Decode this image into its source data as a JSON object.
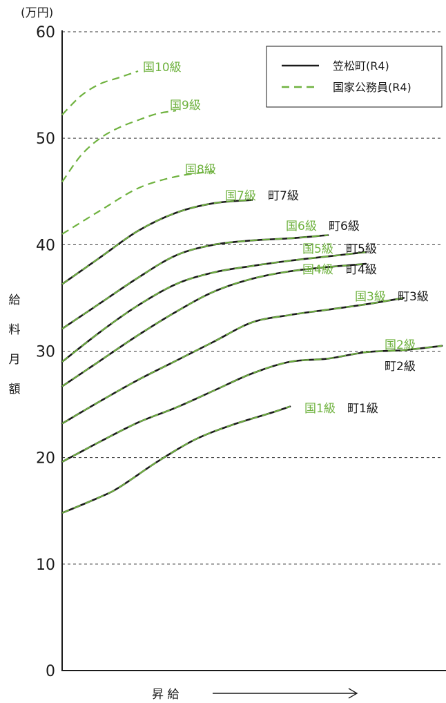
{
  "chart_data": {
    "type": "line",
    "unit_label": "(万円)",
    "ylabel": "給料月額",
    "xlabel": "昇 給",
    "ylim": [
      0,
      60
    ],
    "yticks": [
      0,
      10,
      20,
      30,
      40,
      50,
      60
    ],
    "xlim": [
      0,
      100
    ],
    "grid": "horizontal dashed at 10-unit ticks",
    "legend": {
      "placement": "top-right",
      "entries": [
        {
          "label": "笠松町(R4)",
          "style": "solid",
          "color": "#1a1a1a"
        },
        {
          "label": "国家公務員(R4)",
          "style": "dashed",
          "color": "#6fb23f"
        }
      ]
    },
    "series": [
      {
        "grade": 1,
        "gov_label": "国1級",
        "town_label": "町1級",
        "x": [
          0,
          10,
          15,
          25,
          35,
          45,
          55,
          60
        ],
        "y": [
          14.8,
          16.3,
          17.2,
          19.6,
          21.7,
          23.1,
          24.2,
          24.8
        ]
      },
      {
        "grade": 2,
        "gov_label": "国2級",
        "town_label": "町2級",
        "x": [
          0,
          10,
          20,
          30,
          40,
          50,
          60,
          70,
          80,
          90,
          100
        ],
        "y": [
          19.6,
          21.5,
          23.3,
          24.7,
          26.3,
          27.9,
          29.0,
          29.3,
          29.9,
          30.1,
          30.5
        ]
      },
      {
        "grade": 3,
        "gov_label": "国3級",
        "town_label": "町3級",
        "x": [
          0,
          10,
          20,
          30,
          40,
          50,
          60,
          70,
          80,
          90
        ],
        "y": [
          23.2,
          25.3,
          27.3,
          29.1,
          30.9,
          32.7,
          33.4,
          33.9,
          34.4,
          35.0
        ]
      },
      {
        "grade": 4,
        "gov_label": "国4級",
        "town_label": "町4級",
        "x": [
          0,
          10,
          20,
          30,
          40,
          50,
          60,
          70,
          80
        ],
        "y": [
          26.7,
          29.1,
          31.5,
          33.7,
          35.6,
          36.8,
          37.5,
          37.9,
          38.2
        ]
      },
      {
        "grade": 5,
        "gov_label": "国5級",
        "town_label": "町5級",
        "x": [
          0,
          10,
          20,
          30,
          40,
          50,
          60,
          70,
          80
        ],
        "y": [
          29.0,
          31.8,
          34.3,
          36.3,
          37.4,
          38.0,
          38.5,
          38.9,
          39.3
        ]
      },
      {
        "grade": 6,
        "gov_label": "国6級",
        "town_label": "町6級",
        "x": [
          0,
          10,
          20,
          30,
          40,
          50,
          60,
          70
        ],
        "y": [
          32.1,
          34.5,
          36.9,
          39.0,
          40.0,
          40.4,
          40.6,
          40.9
        ]
      },
      {
        "grade": 7,
        "gov_label": "国7級",
        "town_label": "町7級",
        "x": [
          0,
          10,
          20,
          30,
          40,
          50
        ],
        "y": [
          36.3,
          38.8,
          41.3,
          43.0,
          43.9,
          44.2
        ]
      },
      {
        "grade": 8,
        "gov_label": "国8級",
        "town_label": "",
        "x": [
          0,
          10,
          20,
          30,
          40
        ],
        "y": [
          41.0,
          43.2,
          45.3,
          46.4,
          46.9
        ]
      },
      {
        "grade": 9,
        "gov_label": "国9級",
        "town_label": "",
        "x": [
          0,
          5,
          10,
          15,
          20,
          25,
          30
        ],
        "y": [
          45.9,
          48.4,
          50.0,
          51.0,
          51.7,
          52.3,
          52.6
        ]
      },
      {
        "grade": 10,
        "gov_label": "国10級",
        "town_label": "",
        "x": [
          0,
          5,
          10,
          15,
          20
        ],
        "y": [
          52.2,
          54.0,
          55.1,
          55.7,
          56.3
        ]
      }
    ]
  }
}
